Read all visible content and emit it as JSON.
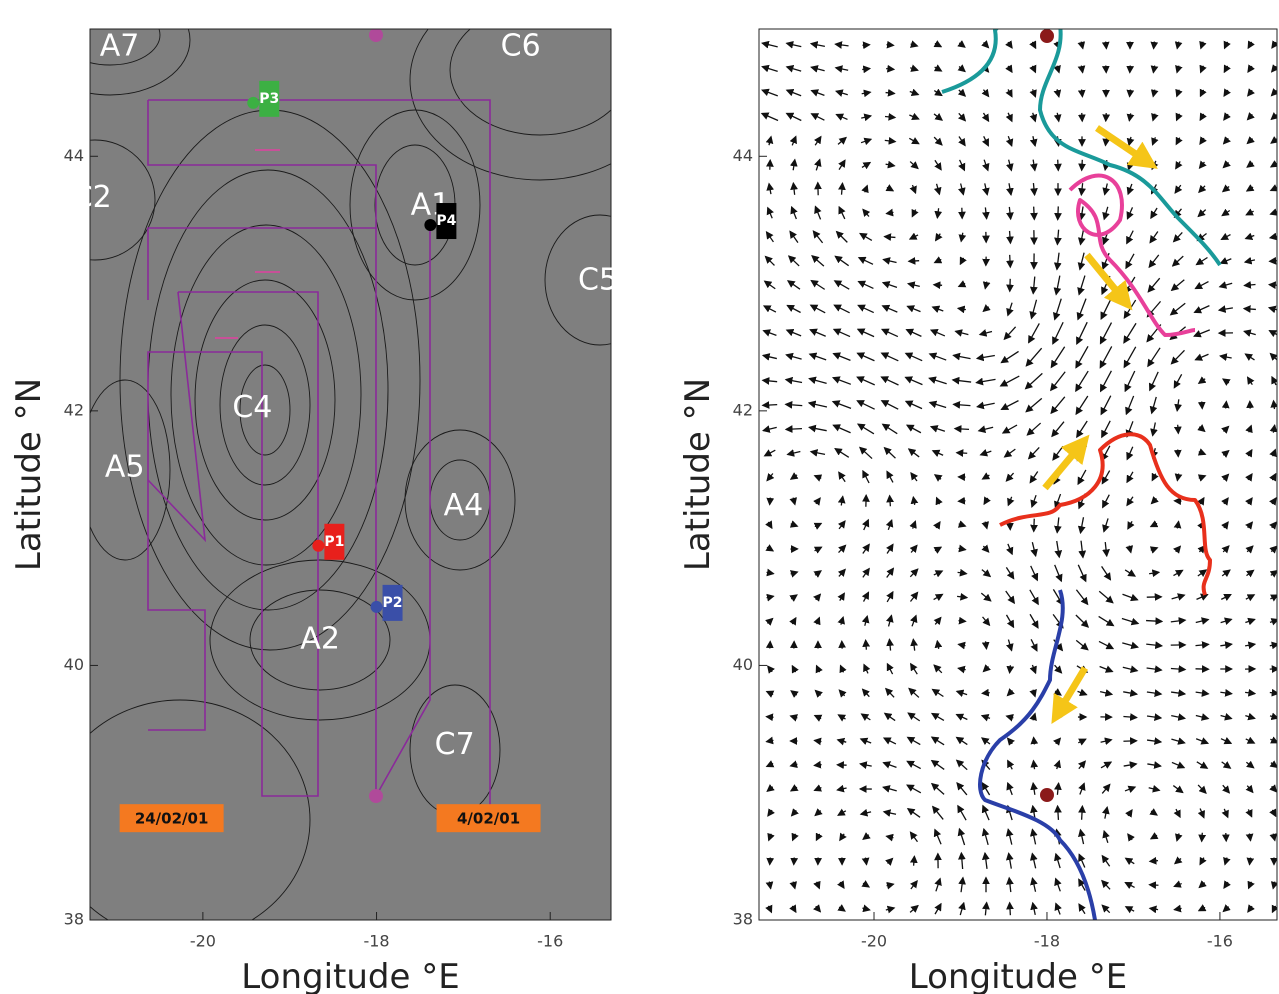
{
  "chart_data": [
    {
      "type": "contour",
      "x_label": "Longitude °E",
      "y_label": "Latitude °N",
      "xlim": [
        -21.3,
        -15.3
      ],
      "ylim": [
        38,
        45
      ],
      "xticks": [
        -20,
        -18,
        -16
      ],
      "yticks": [
        38,
        40,
        42,
        44
      ],
      "annotations": [
        {
          "text": "A7",
          "x": -20.96,
          "y": 44.86
        },
        {
          "text": "C6",
          "x": -16.34,
          "y": 44.86
        },
        {
          "text": "C2",
          "x": -21.28,
          "y": 43.67
        },
        {
          "text": "A1",
          "x": -17.38,
          "y": 43.61
        },
        {
          "text": "C5",
          "x": -15.45,
          "y": 43.02
        },
        {
          "text": "C4",
          "x": -19.43,
          "y": 42.02
        },
        {
          "text": "A5",
          "x": -20.9,
          "y": 41.55
        },
        {
          "text": "A4",
          "x": -17.0,
          "y": 41.25
        },
        {
          "text": "A2",
          "x": -18.65,
          "y": 40.2
        },
        {
          "text": "C7",
          "x": -17.1,
          "y": 39.37
        }
      ],
      "date_labels": [
        {
          "text": "24/02/01",
          "x": -20.36,
          "y": 38.8
        },
        {
          "text": "4/02/01",
          "x": -16.71,
          "y": 38.8
        }
      ],
      "markers": [
        {
          "label": "P1",
          "color": "#e8201c",
          "x": -18.67,
          "y": 40.94
        },
        {
          "label": "P2",
          "color": "#3a4fa8",
          "x": -18.0,
          "y": 40.46
        },
        {
          "label": "P3",
          "color": "#3cb043",
          "x": -19.42,
          "y": 44.42
        },
        {
          "label": "P4",
          "color": "#000000",
          "x": -17.38,
          "y": 43.46
        }
      ]
    },
    {
      "type": "vector",
      "x_label": "Longitude °E",
      "y_label": "Latitude °N",
      "xlim": [
        -21.33,
        -15.34
      ],
      "ylim": [
        38,
        45
      ],
      "xticks": [
        -20,
        -18,
        -16
      ],
      "yticks": [
        38,
        40,
        42,
        44
      ]
    }
  ]
}
